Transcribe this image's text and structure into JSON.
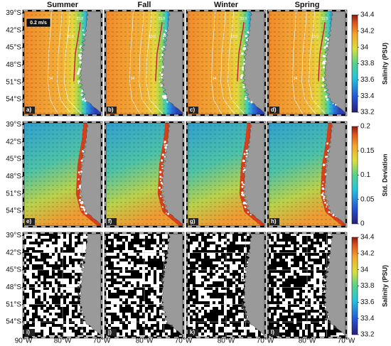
{
  "columns": [
    "Summer",
    "Fall",
    "Winter",
    "Spring"
  ],
  "panel_labels": [
    [
      "a)",
      "b)",
      "c)",
      "d)"
    ],
    [
      "e)",
      "f)",
      "g)",
      "h)"
    ],
    [
      "i)",
      "j)",
      "k)",
      "l)"
    ]
  ],
  "lon_range": [
    -90,
    -70
  ],
  "lat_range": [
    -56.7,
    -38.6
  ],
  "lon_ticks": [
    {
      "value": -90,
      "label": "90°W"
    },
    {
      "value": -80,
      "label": "80°W"
    },
    {
      "value": -70,
      "label": "70°W"
    }
  ],
  "lat_ticks": [
    {
      "value": -39,
      "label": "39°S"
    },
    {
      "value": -42,
      "label": "42°S"
    },
    {
      "value": -45,
      "label": "45°S"
    },
    {
      "value": -48,
      "label": "48°S"
    },
    {
      "value": -51,
      "label": "51°S"
    },
    {
      "value": -54,
      "label": "54°S"
    }
  ],
  "scale_label": "0.2 m/s",
  "contour_labels": [
    "34",
    "33.9",
    "33.8"
  ],
  "colorbars": [
    {
      "label": "Salinity (PSU)",
      "lim": [
        33.2,
        34.4
      ],
      "ticks": [
        34.4,
        34.2,
        34,
        33.8,
        33.6,
        33.4,
        33.2
      ]
    },
    {
      "label": "Std. Deviation",
      "lim": [
        0,
        0.2
      ],
      "ticks": [
        0.2,
        0.15,
        0.1,
        0.05,
        0
      ]
    },
    {
      "label": "Salinity (PSU)",
      "lim": [
        33.2,
        34.4
      ],
      "ticks": [
        34.4,
        34.2,
        34,
        33.8,
        33.6,
        33.4,
        33.2
      ]
    }
  ]
}
